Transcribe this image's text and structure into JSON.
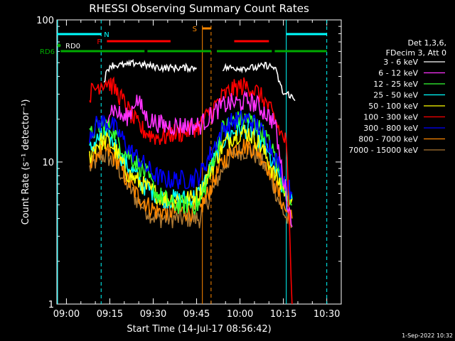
{
  "chart_data": {
    "type": "line",
    "title": "RHESSI Observing Summary Count Rates",
    "xlabel": "Start Time (14-Jul-17 08:56:42)",
    "ylabel": "Count Rate (s⁻¹ detector⁻¹)",
    "y_scale": "log",
    "ylim": [
      1,
      100
    ],
    "xlim": [
      "08:56:42",
      "10:35:00"
    ],
    "x_ticks": [
      "09:00",
      "09:15",
      "09:30",
      "09:45",
      "10:00",
      "10:15",
      "10:30"
    ],
    "y_ticks": [
      "1",
      "10",
      "100"
    ],
    "timestamp": "1-Sep-2022 10:32",
    "legend_header": [
      "Det 1,3,6,",
      "FDecim 3, Att 0"
    ],
    "legend_placement": "right",
    "series": [
      {
        "name": "3 - 6 keV",
        "color": "#ffffff",
        "x": [
          "09:05",
          "09:07",
          "09:09",
          "09:11",
          "09:13",
          "09:15",
          "09:18",
          "09:21",
          "09:24",
          "09:27",
          "09:30",
          "09:33",
          "09:36",
          "09:39",
          "09:42",
          "09:45",
          "09:52",
          "09:54",
          "09:57",
          "10:00",
          "10:03",
          "10:06",
          "10:09",
          "10:12",
          "10:15",
          "10:17",
          "10:19"
        ],
        "y": [
          null,
          null,
          null,
          null,
          38,
          48,
          48,
          48,
          50,
          48,
          47,
          46,
          46,
          46,
          46,
          46,
          null,
          46,
          46,
          46,
          46,
          46,
          48,
          46,
          30,
          30,
          27
        ]
      },
      {
        "name": "6 - 12 keV",
        "color": "#ff33ff",
        "x": [
          "09:08",
          "09:10",
          "09:12",
          "09:14",
          "09:16",
          "09:18",
          "09:20",
          "09:22",
          "09:24",
          "09:26",
          "09:28",
          "09:31",
          "09:34",
          "09:37",
          "09:40",
          "09:43",
          "09:46",
          "09:54",
          "09:57",
          "10:00",
          "10:03",
          "10:06",
          "10:09",
          "10:12",
          "10:14",
          "10:16",
          "10:18"
        ],
        "y": [
          null,
          null,
          null,
          22,
          24,
          22,
          20,
          22,
          28,
          24,
          20,
          19,
          18,
          18,
          18,
          18,
          18,
          25,
          26,
          26,
          27,
          25,
          22,
          19,
          10,
          6,
          3.5
        ]
      },
      {
        "name": "12 - 25 keV",
        "color": "#33ff33",
        "x": [
          "09:08",
          "09:10",
          "09:12",
          "09:14",
          "09:16",
          "09:18",
          "09:20",
          "09:22",
          "09:24",
          "09:26",
          "09:28",
          "09:31",
          "09:34",
          "09:37",
          "09:40",
          "09:43",
          "09:46",
          "09:54",
          "09:57",
          "10:00",
          "10:03",
          "10:06",
          "10:09",
          "10:12",
          "10:14",
          "10:16",
          "10:18"
        ],
        "y": [
          15,
          17,
          18,
          18,
          17,
          14,
          12,
          11,
          10,
          9,
          8,
          6,
          5.5,
          5,
          5,
          5,
          5,
          17,
          19,
          20,
          20,
          18,
          15,
          11,
          8,
          6,
          5
        ]
      },
      {
        "name": "25 - 50 keV",
        "color": "#00ffff",
        "x": [
          "09:08",
          "09:10",
          "09:12",
          "09:14",
          "09:16",
          "09:18",
          "09:20",
          "09:22",
          "09:24",
          "09:26",
          "09:28",
          "09:31",
          "09:34",
          "09:37",
          "09:40",
          "09:43",
          "09:46",
          "09:54",
          "09:57",
          "10:00",
          "10:03",
          "10:06",
          "10:09",
          "10:12",
          "10:14",
          "10:16",
          "10:18"
        ],
        "y": [
          12,
          14,
          15,
          15,
          14,
          12,
          10,
          9,
          8,
          7,
          6.5,
          6,
          5.5,
          5.5,
          5.5,
          5.5,
          6,
          14,
          16,
          17,
          17,
          15,
          12,
          9,
          7,
          6,
          5.5
        ]
      },
      {
        "name": "50 - 100 keV",
        "color": "#ffff00",
        "x": [
          "09:08",
          "09:10",
          "09:12",
          "09:14",
          "09:16",
          "09:18",
          "09:20",
          "09:22",
          "09:24",
          "09:26",
          "09:28",
          "09:31",
          "09:34",
          "09:37",
          "09:40",
          "09:43",
          "09:46",
          "09:54",
          "09:57",
          "10:00",
          "10:03",
          "10:06",
          "10:09",
          "10:12",
          "10:14",
          "10:16",
          "10:18"
        ],
        "y": [
          11,
          13,
          14,
          14,
          13,
          11,
          9,
          8,
          7.5,
          7,
          6.5,
          6,
          5.5,
          5.5,
          5.5,
          5.5,
          6,
          13,
          15,
          16,
          16,
          14,
          11,
          8,
          7,
          6,
          5.5
        ]
      },
      {
        "name": "100 - 300 keV",
        "color": "#ff0000",
        "x": [
          "09:08",
          "09:10",
          "09:12",
          "09:14",
          "09:16",
          "09:18",
          "09:20",
          "09:22",
          "09:24",
          "09:26",
          "09:28",
          "09:31",
          "09:34",
          "09:37",
          "09:40",
          "09:43",
          "09:46",
          "09:54",
          "09:57",
          "10:00",
          "10:03",
          "10:06",
          "10:09",
          "10:12",
          "10:14",
          "10:16",
          "10:18"
        ],
        "y": [
          30,
          33,
          36,
          37,
          34,
          30,
          26,
          22,
          19,
          17,
          16,
          15,
          15,
          16,
          16,
          17,
          18,
          29,
          32,
          34,
          34,
          31,
          26,
          20,
          16,
          14,
          1
        ]
      },
      {
        "name": "300 - 800 keV",
        "color": "#0000ff",
        "x": [
          "09:08",
          "09:10",
          "09:12",
          "09:14",
          "09:16",
          "09:18",
          "09:20",
          "09:22",
          "09:24",
          "09:26",
          "09:28",
          "09:31",
          "09:34",
          "09:37",
          "09:40",
          "09:43",
          "09:46",
          "09:54",
          "09:57",
          "10:00",
          "10:03",
          "10:06",
          "10:09",
          "10:12",
          "10:14",
          "10:16",
          "10:18"
        ],
        "y": [
          16,
          18,
          19,
          19,
          18,
          16,
          14,
          12,
          11,
          10,
          9,
          8,
          7.5,
          7.5,
          7.5,
          7.5,
          8,
          17,
          19,
          20,
          20,
          18,
          15,
          11,
          9,
          7,
          6
        ]
      },
      {
        "name": "800 - 7000 keV",
        "color": "#ff8800",
        "x": [
          "09:08",
          "09:10",
          "09:12",
          "09:14",
          "09:16",
          "09:18",
          "09:20",
          "09:22",
          "09:24",
          "09:26",
          "09:28",
          "09:31",
          "09:34",
          "09:37",
          "09:40",
          "09:43",
          "09:46",
          "09:54",
          "09:57",
          "10:00",
          "10:03",
          "10:06",
          "10:09",
          "10:12",
          "10:14",
          "10:16",
          "10:18"
        ],
        "y": [
          10,
          11.5,
          12,
          12,
          11,
          10,
          8,
          7,
          6,
          5.5,
          5,
          4.5,
          4.5,
          4.5,
          4.5,
          4.5,
          4.5,
          10,
          12,
          13,
          13,
          12,
          10,
          7,
          5.5,
          4.5,
          4
        ]
      },
      {
        "name": "7000 - 15000 keV",
        "color": "#aa7733",
        "x": [
          "09:08",
          "09:10",
          "09:12",
          "09:14",
          "09:16",
          "09:18",
          "09:20",
          "09:22",
          "09:24",
          "09:26",
          "09:28",
          "09:31",
          "09:34",
          "09:37",
          "09:40",
          "09:43",
          "09:46",
          "09:54",
          "09:57",
          "10:00",
          "10:03",
          "10:06",
          "10:09",
          "10:12",
          "10:14",
          "10:16",
          "10:18"
        ],
        "y": [
          9,
          10,
          11,
          11,
          10,
          9,
          7.5,
          6.5,
          5.5,
          5,
          4.5,
          4,
          4,
          4,
          4,
          4,
          4,
          9,
          11,
          12,
          12,
          11,
          9,
          6.5,
          5,
          4,
          3.5
        ]
      }
    ],
    "annotations": [
      {
        "label": "N",
        "color": "#00ffff",
        "segments": [
          [
            "08:56:42",
            "09:12"
          ],
          [
            "10:16",
            "10:30"
          ]
        ]
      },
      {
        "label": "F",
        "color": "#ff0000",
        "segments": [
          [
            "09:14",
            "09:36"
          ],
          [
            "09:58",
            "10:10"
          ]
        ]
      },
      {
        "label": "S",
        "color": "#ff8800",
        "segments": [
          [
            "09:47",
            "09:50"
          ]
        ]
      },
      {
        "label": "RD0",
        "color": "#00aa00",
        "segments": []
      },
      {
        "label": "RD6",
        "color": "#00aa00",
        "segments": [
          [
            "08:58",
            "09:27"
          ],
          [
            "09:28",
            "09:50"
          ],
          [
            "09:52",
            "10:11"
          ],
          [
            "10:12",
            "10:30"
          ]
        ]
      }
    ]
  }
}
